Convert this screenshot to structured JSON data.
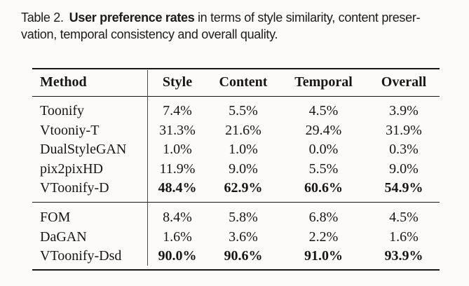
{
  "caption": {
    "label": "Table 2.",
    "highlight": "User preference rates",
    "line1_rest": "in terms of style similarity, content preser-",
    "line2": "vation, temporal consistency and overall quality."
  },
  "table": {
    "headers": [
      "Method",
      "Style",
      "Content",
      "Temporal",
      "Overall"
    ],
    "sections": [
      {
        "rows": [
          {
            "method": "Toonify",
            "values": [
              "7.4%",
              "5.5%",
              "4.5%",
              "3.9%"
            ],
            "bold_values": false
          },
          {
            "method": "Vtooniy-T",
            "values": [
              "31.3%",
              "21.6%",
              "29.4%",
              "31.9%"
            ],
            "bold_values": false
          },
          {
            "method": "DualStyleGAN",
            "values": [
              "1.0%",
              "1.0%",
              "0.0%",
              "0.3%"
            ],
            "bold_values": false
          },
          {
            "method": "pix2pixHD",
            "values": [
              "11.9%",
              "9.0%",
              "5.5%",
              "9.0%"
            ],
            "bold_values": false
          },
          {
            "method": "VToonify-D",
            "values": [
              "48.4%",
              "62.9%",
              "60.6%",
              "54.9%"
            ],
            "bold_values": true
          }
        ]
      },
      {
        "rows": [
          {
            "method": "FOM",
            "values": [
              "8.4%",
              "5.8%",
              "6.8%",
              "4.5%"
            ],
            "bold_values": false
          },
          {
            "method": "DaGAN",
            "values": [
              "1.6%",
              "3.6%",
              "2.2%",
              "1.6%"
            ],
            "bold_values": false
          },
          {
            "method": "VToonify-Dsd",
            "values": [
              "90.0%",
              "90.6%",
              "91.0%",
              "93.9%"
            ],
            "bold_values": true
          }
        ]
      }
    ]
  },
  "colors": {
    "background": "#fcfbf9",
    "text": "#161616",
    "rule": "#161616",
    "divider": "#4a4a4a"
  }
}
